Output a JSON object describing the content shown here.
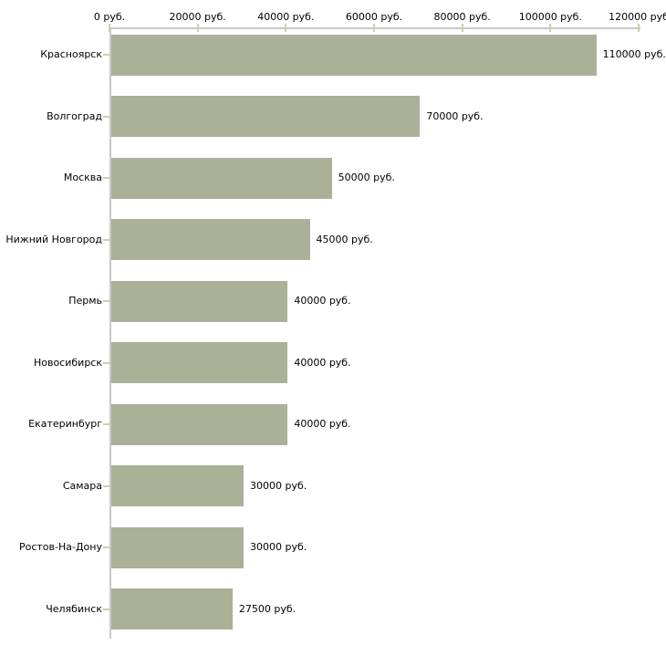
{
  "chart_data": {
    "type": "bar",
    "orientation": "horizontal",
    "title": "",
    "categories": [
      "Красноярск",
      "Волгоград",
      "Москва",
      "Нижний Новгород",
      "Пермь",
      "Новосибирск",
      "Екатеринбург",
      "Самара",
      "Ростов-На-Дону",
      "Челябинск"
    ],
    "values": [
      110000,
      70000,
      50000,
      45000,
      40000,
      40000,
      40000,
      30000,
      30000,
      27500
    ],
    "value_labels": [
      "110000 руб.",
      "70000 руб.",
      "50000 руб.",
      "45000 руб.",
      "40000 руб.",
      "40000 руб.",
      "40000 руб.",
      "30000 руб.",
      "30000 руб.",
      "27500 руб."
    ],
    "x_axis": {
      "position": "top",
      "min": 0,
      "max": 120000,
      "tick_values": [
        0,
        20000,
        40000,
        60000,
        80000,
        100000,
        120000
      ],
      "tick_labels": [
        "0 руб.",
        "20000 руб.",
        "40000 руб.",
        "60000 руб.",
        "80000 руб.",
        "100000 руб.",
        "120000 руб"
      ]
    },
    "grid": false,
    "legend": false,
    "colors": {
      "bar": "#aab197",
      "axis": "#c8c8c8",
      "tick": "#cdd0ae",
      "text": "#000000",
      "background": "#ffffff"
    }
  }
}
